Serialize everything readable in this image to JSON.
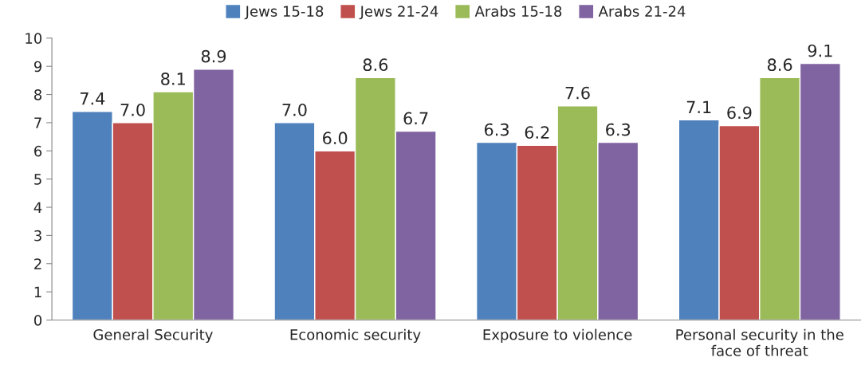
{
  "chart_data": {
    "type": "bar",
    "categories": [
      "General Security",
      "Economic security",
      "Exposure to violence",
      "Personal security in the\nface of threat"
    ],
    "series": [
      {
        "name": "Jews 15-18",
        "color": "#4f81bd",
        "values": [
          7.4,
          7.0,
          6.3,
          7.1
        ],
        "value_labels": [
          "7.4",
          "7.0",
          "6.3",
          "7.1"
        ]
      },
      {
        "name": "Jews 21-24",
        "color": "#c0504d",
        "values": [
          7.0,
          6.0,
          6.2,
          6.9
        ],
        "value_labels": [
          "7.0",
          "6.0",
          "6.2",
          "6.9"
        ]
      },
      {
        "name": "Arabs 15-18",
        "color": "#9bbb59",
        "values": [
          8.1,
          8.6,
          7.6,
          8.6
        ],
        "value_labels": [
          "8.1",
          "8.6",
          "7.6",
          "8.6"
        ]
      },
      {
        "name": "Arabs 21-24",
        "color": "#8064a2",
        "values": [
          8.9,
          6.7,
          6.3,
          9.1
        ],
        "value_labels": [
          "8.9",
          "6.7",
          "6.3",
          "9.1"
        ]
      }
    ],
    "ylim": [
      0,
      10
    ],
    "yticks": [
      0,
      1,
      2,
      3,
      4,
      5,
      6,
      7,
      8,
      9,
      10
    ],
    "grid": false,
    "legend": "top"
  }
}
